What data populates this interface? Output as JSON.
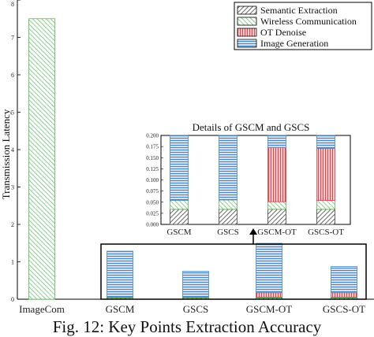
{
  "caption": "Fig. 12: Key Points Extraction Accuracy",
  "colors": {
    "semantic_extraction": "#444444",
    "wireless_communication": "#5cb85c",
    "ot_denoise": "#e0454c",
    "image_generation": "#4a86c5"
  },
  "chart_data": [
    {
      "type": "bar",
      "stacked": true,
      "ylabel": "Transmission Latency",
      "ylim": [
        0,
        8
      ],
      "yticks": [
        "0",
        "1",
        "2",
        "3",
        "4",
        "5",
        "6",
        "7",
        "8"
      ],
      "categories": [
        "ImageCom",
        "GSCM",
        "GSCS",
        "GSCM-OT",
        "GSCS-OT"
      ],
      "series": [
        {
          "name": "Semantic Extraction",
          "values": [
            0,
            0.034,
            0.034,
            0.034,
            0.034
          ]
        },
        {
          "name": "Wireless Communication",
          "values": [
            7.5,
            0.02,
            0.02,
            0.02,
            0.02
          ]
        },
        {
          "name": "OT Denoise",
          "values": [
            0,
            0,
            0,
            0.12,
            0.12
          ]
        },
        {
          "name": "Image Generation",
          "values": [
            0,
            1.23,
            0.69,
            1.32,
            0.7
          ]
        }
      ],
      "legend": {
        "placement": "top-right",
        "entries": [
          "Semantic Extraction",
          "Wireless Communication",
          "OT Denoise",
          "Image Generation"
        ]
      }
    },
    {
      "type": "bar",
      "stacked": true,
      "title": "Details of GSCM and GSCS",
      "ylim": [
        0,
        0.2
      ],
      "yticks": [
        "0.000",
        "0.025",
        "0.050",
        "0.075",
        "0.100",
        "0.125",
        "0.150",
        "0.175",
        "0.200"
      ],
      "categories": [
        "GSCM",
        "GSCS",
        "GSCM-OT",
        "GSCS-OT"
      ],
      "series": [
        {
          "name": "Semantic Extraction",
          "values": [
            0.034,
            0.034,
            0.034,
            0.034
          ]
        },
        {
          "name": "Wireless Communication",
          "values": [
            0.02,
            0.021,
            0.017,
            0.02
          ]
        },
        {
          "name": "OT Denoise",
          "values": [
            0,
            0,
            0.122,
            0.117
          ]
        },
        {
          "name": "Image Generation",
          "values": [
            0.146,
            0.145,
            0.027,
            0.029
          ]
        }
      ]
    }
  ]
}
